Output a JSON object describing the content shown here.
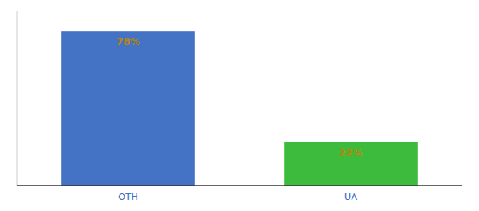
{
  "chart_data": {
    "type": "bar",
    "categories": [
      "OTH",
      "UA"
    ],
    "values": [
      78,
      22
    ],
    "value_labels": [
      "78%",
      "22%"
    ],
    "colors": [
      "#4472c4",
      "#3dbb3d"
    ],
    "ylim": [
      0,
      88
    ],
    "data_labels": true,
    "tick_labels": "x",
    "grid": false
  }
}
